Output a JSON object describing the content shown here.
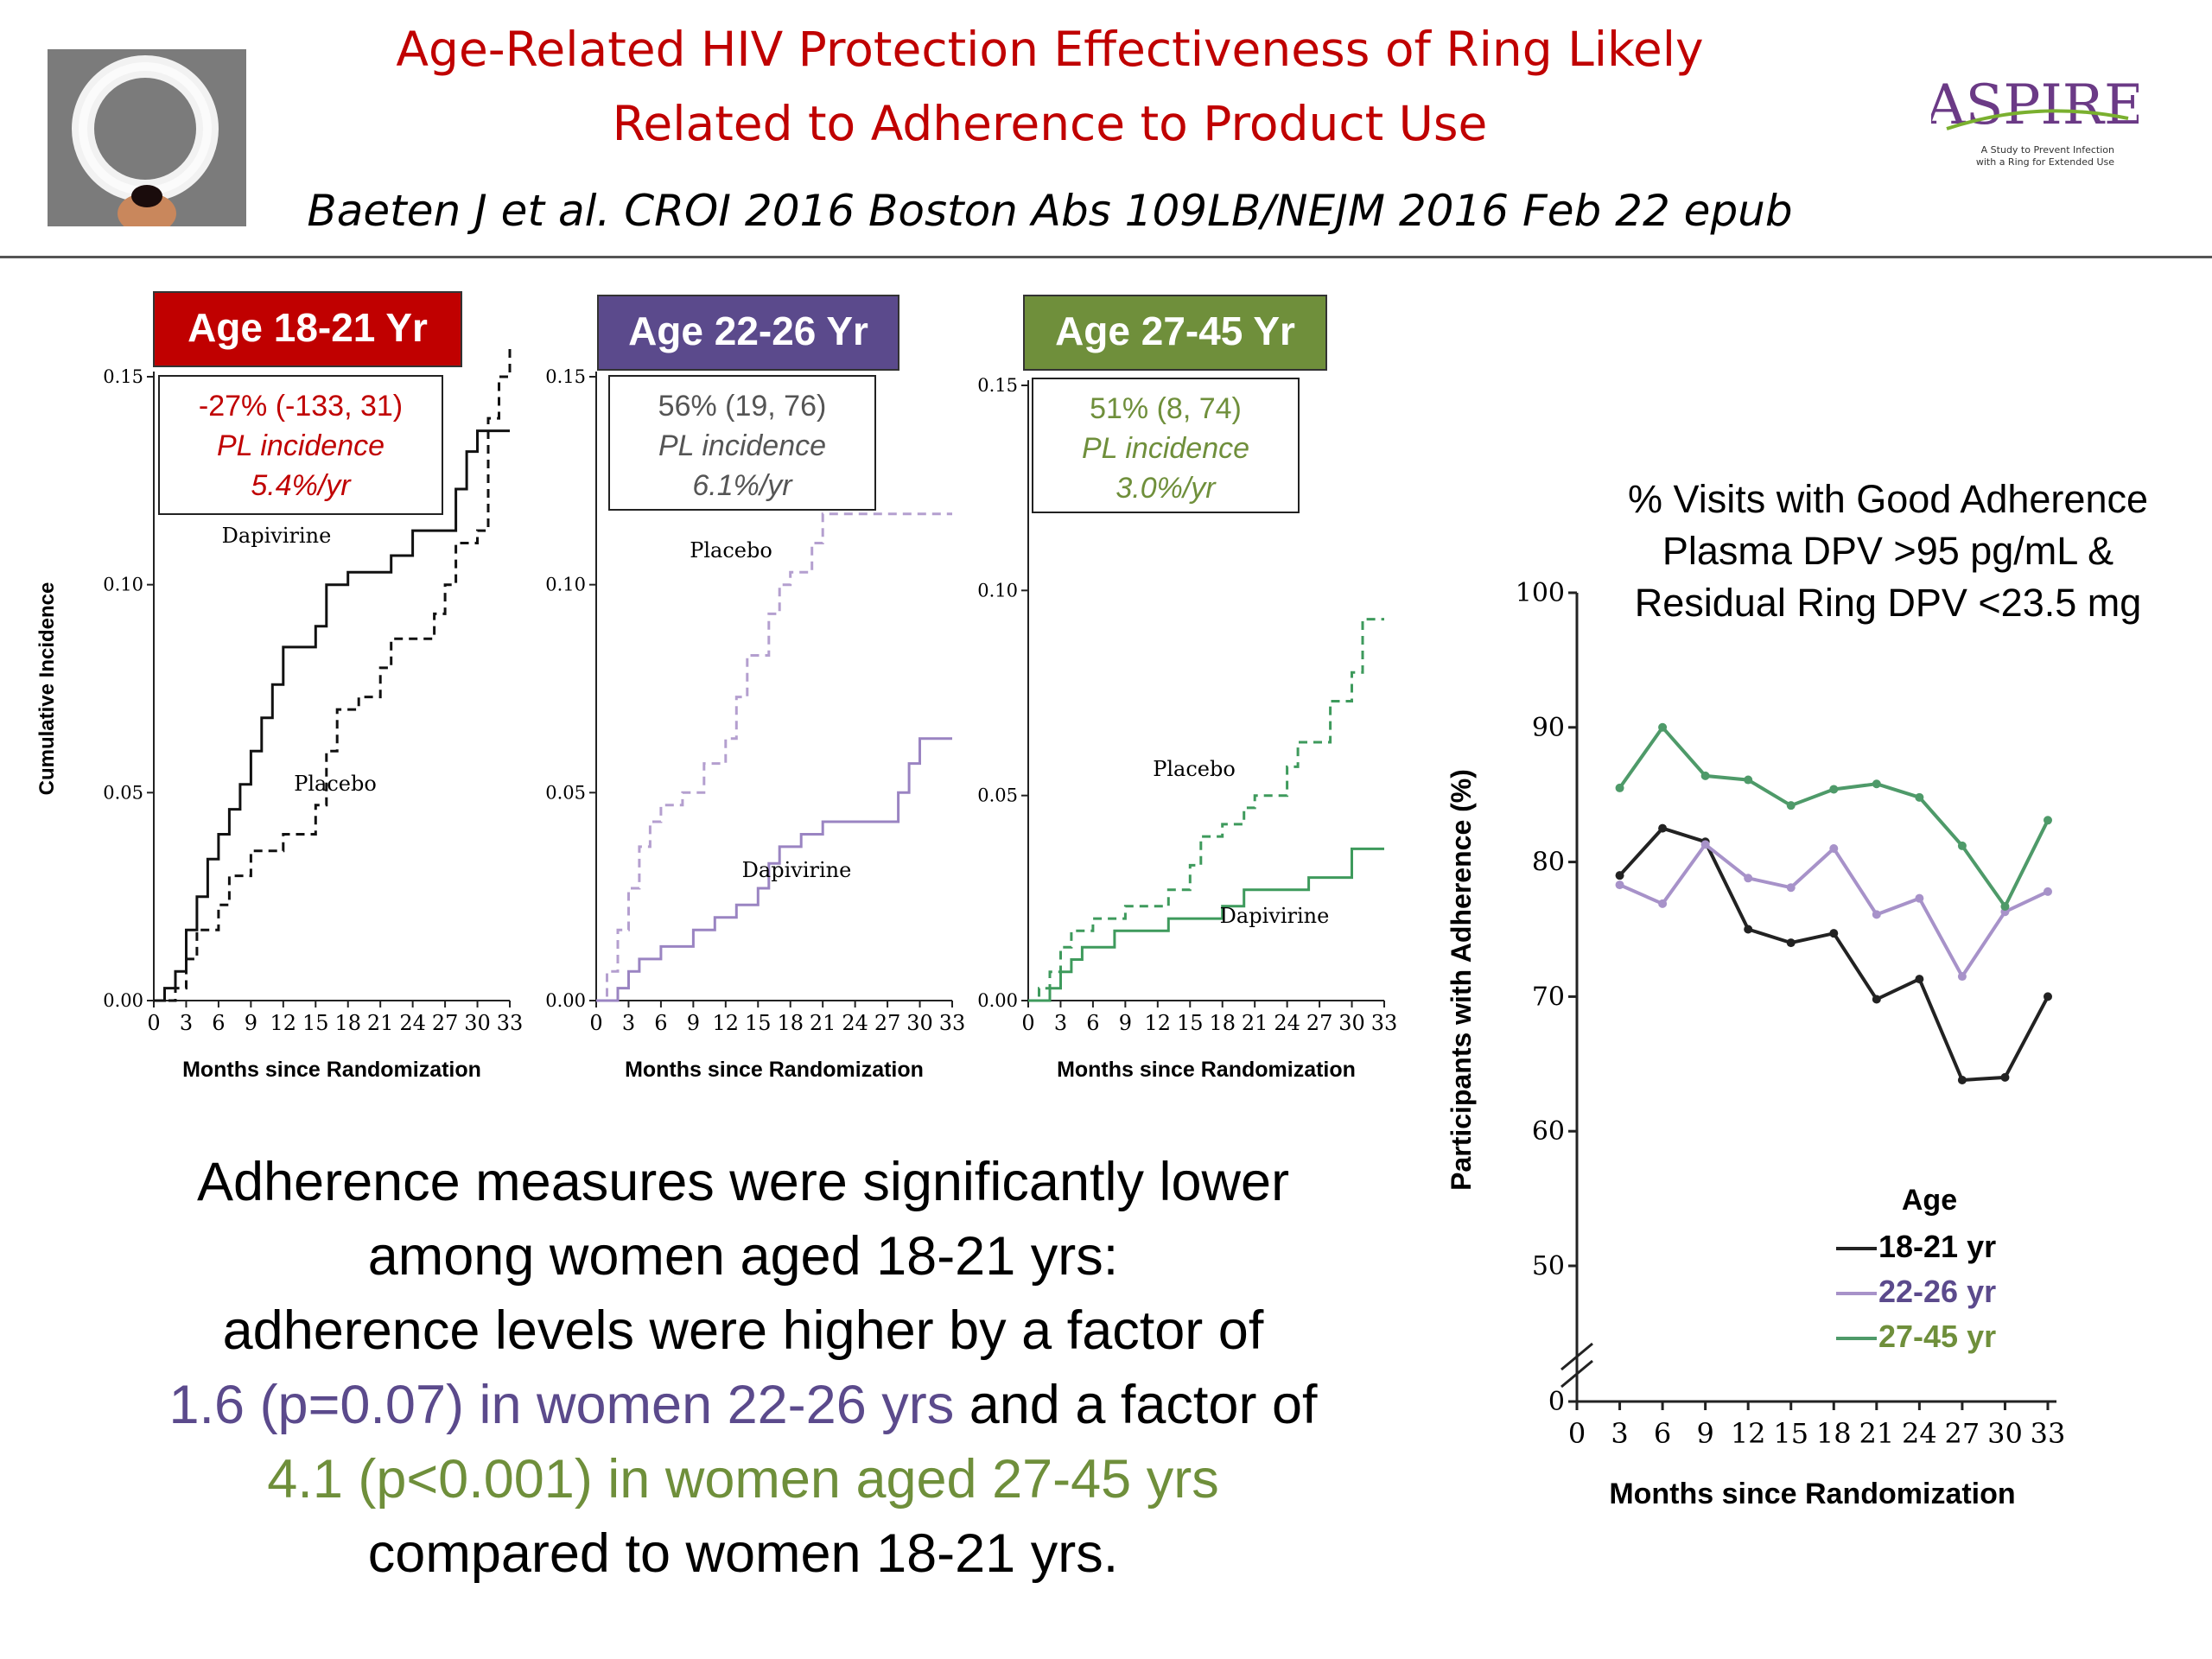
{
  "header": {
    "title_line1": "Age-Related HIV Protection Effectiveness of Ring  Likely",
    "title_line2": "Related to Adherence to Product Use",
    "citation": "Baeten J et al. CROI 2016 Boston Abs 109LB/NEJM 2016 Feb 22 epub",
    "logo_text": "ASPIRE",
    "logo_sub1": "A Study to Prevent Infection",
    "logo_sub2": "with a Ring for Extended Use"
  },
  "colors": {
    "title_red": "#c00000",
    "panel1_red": "#c00000",
    "panel2_purple": "#5b4a8c",
    "panel3_green": "#6f8f3b",
    "placebo_purple_line": "#b49fcf",
    "dapivirine_purple_line": "#9a84c2",
    "green_line": "#3e9a5c",
    "adh_black": "#222222",
    "adh_purple": "#a792c9",
    "adh_green": "#4e9a69"
  },
  "summary": {
    "line1": "Adherence measures were significantly lower",
    "line2": "among women aged 18-21 yrs:",
    "line3": "adherence levels were higher by a factor of",
    "line4a": "1.6 (p=0.07) in women 22-26 yrs",
    "line4b": " and a factor of",
    "line5": "4.1 (p<0.001) in women aged 27-45 yrs",
    "line6": "compared to women 18-21 yrs."
  },
  "adherence_title": {
    "line1": "% Visits with Good Adherence",
    "line2": "Plasma DPV >95 pg/mL &",
    "line3": "Residual Ring DPV <23.5 mg"
  },
  "chart_data": [
    {
      "type": "line",
      "subtype": "step",
      "badge": "Age 18-21 Yr",
      "effect": "-27% (-133, 31)",
      "effect_sub1": "PL incidence",
      "effect_sub2": "5.4%/yr",
      "ylabel": "Cumulative Incidence",
      "xlabel": "Months since Randomization",
      "x_ticks": [
        0,
        3,
        6,
        9,
        12,
        15,
        18,
        21,
        24,
        27,
        30,
        33
      ],
      "y_ticks": [
        "0.00",
        "0.05",
        "0.10",
        "0.15"
      ],
      "xlim": [
        0,
        33
      ],
      "ylim": [
        0,
        0.15
      ],
      "series": [
        {
          "name": "Dapivirine",
          "style": "solid",
          "points": [
            [
              0,
              0
            ],
            [
              1,
              0
            ],
            [
              1,
              0.003
            ],
            [
              2,
              0.003
            ],
            [
              2,
              0.007
            ],
            [
              3,
              0.007
            ],
            [
              3,
              0.017
            ],
            [
              4,
              0.017
            ],
            [
              4,
              0.025
            ],
            [
              5,
              0.025
            ],
            [
              5,
              0.034
            ],
            [
              6,
              0.034
            ],
            [
              6,
              0.04
            ],
            [
              7,
              0.04
            ],
            [
              7,
              0.046
            ],
            [
              8,
              0.046
            ],
            [
              8,
              0.052
            ],
            [
              9,
              0.052
            ],
            [
              9,
              0.06
            ],
            [
              10,
              0.06
            ],
            [
              10,
              0.068
            ],
            [
              11,
              0.068
            ],
            [
              11,
              0.076
            ],
            [
              12,
              0.076
            ],
            [
              12,
              0.085
            ],
            [
              15,
              0.085
            ],
            [
              15,
              0.09
            ],
            [
              16,
              0.09
            ],
            [
              16,
              0.1
            ],
            [
              18,
              0.1
            ],
            [
              18,
              0.103
            ],
            [
              22,
              0.103
            ],
            [
              22,
              0.107
            ],
            [
              24,
              0.107
            ],
            [
              24,
              0.113
            ],
            [
              28,
              0.113
            ],
            [
              28,
              0.123
            ],
            [
              29,
              0.123
            ],
            [
              29,
              0.132
            ],
            [
              30,
              0.132
            ],
            [
              30,
              0.137
            ],
            [
              33,
              0.137
            ]
          ]
        },
        {
          "name": "Placebo",
          "style": "dashed",
          "points": [
            [
              0,
              0
            ],
            [
              2,
              0
            ],
            [
              2,
              0.003
            ],
            [
              3,
              0.003
            ],
            [
              3,
              0.01
            ],
            [
              4,
              0.01
            ],
            [
              4,
              0.017
            ],
            [
              6,
              0.017
            ],
            [
              6,
              0.023
            ],
            [
              7,
              0.023
            ],
            [
              7,
              0.03
            ],
            [
              9,
              0.03
            ],
            [
              9,
              0.036
            ],
            [
              12,
              0.036
            ],
            [
              12,
              0.04
            ],
            [
              15,
              0.04
            ],
            [
              15,
              0.047
            ],
            [
              16,
              0.047
            ],
            [
              16,
              0.06
            ],
            [
              17,
              0.06
            ],
            [
              17,
              0.07
            ],
            [
              19,
              0.07
            ],
            [
              19,
              0.073
            ],
            [
              21,
              0.073
            ],
            [
              21,
              0.08
            ],
            [
              22,
              0.08
            ],
            [
              22,
              0.087
            ],
            [
              26,
              0.087
            ],
            [
              26,
              0.093
            ],
            [
              27,
              0.093
            ],
            [
              27,
              0.1
            ],
            [
              28,
              0.1
            ],
            [
              28,
              0.11
            ],
            [
              30,
              0.11
            ],
            [
              30,
              0.113
            ],
            [
              31,
              0.113
            ],
            [
              31,
              0.14
            ],
            [
              32,
              0.14
            ],
            [
              32,
              0.15
            ],
            [
              33,
              0.15
            ],
            [
              33,
              0.157
            ]
          ]
        }
      ]
    },
    {
      "type": "line",
      "subtype": "step",
      "badge": "Age 22-26 Yr",
      "effect": "56% (19, 76)",
      "effect_sub1": "PL incidence",
      "effect_sub2": "6.1%/yr",
      "xlabel": "Months since Randomization",
      "x_ticks": [
        0,
        3,
        6,
        9,
        12,
        15,
        18,
        21,
        24,
        27,
        30,
        33
      ],
      "y_ticks": [
        "0.00",
        "0.05",
        "0.10",
        "0.15"
      ],
      "xlim": [
        0,
        33
      ],
      "ylim": [
        0,
        0.15
      ],
      "series": [
        {
          "name": "Placebo",
          "style": "dashed",
          "points": [
            [
              0,
              0
            ],
            [
              1,
              0
            ],
            [
              1,
              0.007
            ],
            [
              2,
              0.007
            ],
            [
              2,
              0.017
            ],
            [
              3,
              0.017
            ],
            [
              3,
              0.027
            ],
            [
              4,
              0.027
            ],
            [
              4,
              0.037
            ],
            [
              5,
              0.037
            ],
            [
              5,
              0.043
            ],
            [
              6,
              0.043
            ],
            [
              6,
              0.047
            ],
            [
              8,
              0.047
            ],
            [
              8,
              0.05
            ],
            [
              10,
              0.05
            ],
            [
              10,
              0.057
            ],
            [
              12,
              0.057
            ],
            [
              12,
              0.063
            ],
            [
              13,
              0.063
            ],
            [
              13,
              0.073
            ],
            [
              14,
              0.073
            ],
            [
              14,
              0.083
            ],
            [
              16,
              0.083
            ],
            [
              16,
              0.093
            ],
            [
              17,
              0.093
            ],
            [
              17,
              0.1
            ],
            [
              18,
              0.1
            ],
            [
              18,
              0.103
            ],
            [
              20,
              0.103
            ],
            [
              20,
              0.11
            ],
            [
              21,
              0.11
            ],
            [
              21,
              0.117
            ],
            [
              33,
              0.117
            ]
          ]
        },
        {
          "name": "Dapivirine",
          "style": "solid",
          "points": [
            [
              0,
              0
            ],
            [
              2,
              0
            ],
            [
              2,
              0.003
            ],
            [
              3,
              0.003
            ],
            [
              3,
              0.007
            ],
            [
              4,
              0.007
            ],
            [
              4,
              0.01
            ],
            [
              6,
              0.01
            ],
            [
              6,
              0.013
            ],
            [
              9,
              0.013
            ],
            [
              9,
              0.017
            ],
            [
              11,
              0.017
            ],
            [
              11,
              0.02
            ],
            [
              13,
              0.02
            ],
            [
              13,
              0.023
            ],
            [
              15,
              0.023
            ],
            [
              15,
              0.027
            ],
            [
              16,
              0.027
            ],
            [
              16,
              0.033
            ],
            [
              17,
              0.033
            ],
            [
              17,
              0.037
            ],
            [
              19,
              0.037
            ],
            [
              19,
              0.04
            ],
            [
              21,
              0.04
            ],
            [
              21,
              0.043
            ],
            [
              28,
              0.043
            ],
            [
              28,
              0.05
            ],
            [
              29,
              0.05
            ],
            [
              29,
              0.057
            ],
            [
              30,
              0.057
            ],
            [
              30,
              0.063
            ],
            [
              33,
              0.063
            ]
          ]
        }
      ]
    },
    {
      "type": "line",
      "subtype": "step",
      "badge": "Age 27-45 Yr",
      "effect": "51% (8, 74)",
      "effect_sub1": "PL incidence",
      "effect_sub2": "3.0%/yr",
      "xlabel": "Months since Randomization",
      "x_ticks": [
        0,
        3,
        6,
        9,
        12,
        15,
        18,
        21,
        24,
        27,
        30,
        33
      ],
      "y_ticks": [
        "0.00",
        "0.05",
        "0.10",
        "0.15"
      ],
      "xlim": [
        0,
        33
      ],
      "ylim": [
        0,
        0.15
      ],
      "series": [
        {
          "name": "Placebo",
          "style": "dashed",
          "points": [
            [
              0,
              0
            ],
            [
              1,
              0
            ],
            [
              1,
              0.003
            ],
            [
              2,
              0.003
            ],
            [
              2,
              0.007
            ],
            [
              3,
              0.007
            ],
            [
              3,
              0.013
            ],
            [
              4,
              0.013
            ],
            [
              4,
              0.017
            ],
            [
              6,
              0.017
            ],
            [
              6,
              0.02
            ],
            [
              9,
              0.02
            ],
            [
              9,
              0.023
            ],
            [
              13,
              0.023
            ],
            [
              13,
              0.027
            ],
            [
              15,
              0.027
            ],
            [
              15,
              0.033
            ],
            [
              16,
              0.033
            ],
            [
              16,
              0.04
            ],
            [
              18,
              0.04
            ],
            [
              18,
              0.043
            ],
            [
              20,
              0.043
            ],
            [
              20,
              0.047
            ],
            [
              21,
              0.047
            ],
            [
              21,
              0.05
            ],
            [
              24,
              0.05
            ],
            [
              24,
              0.057
            ],
            [
              25,
              0.057
            ],
            [
              25,
              0.063
            ],
            [
              28,
              0.063
            ],
            [
              28,
              0.073
            ],
            [
              30,
              0.073
            ],
            [
              30,
              0.08
            ],
            [
              31,
              0.08
            ],
            [
              31,
              0.093
            ],
            [
              33,
              0.093
            ]
          ]
        },
        {
          "name": "Dapivirine",
          "style": "solid",
          "points": [
            [
              0,
              0
            ],
            [
              2,
              0
            ],
            [
              2,
              0.003
            ],
            [
              3,
              0.003
            ],
            [
              3,
              0.007
            ],
            [
              4,
              0.007
            ],
            [
              4,
              0.01
            ],
            [
              5,
              0.01
            ],
            [
              5,
              0.013
            ],
            [
              8,
              0.013
            ],
            [
              8,
              0.017
            ],
            [
              13,
              0.017
            ],
            [
              13,
              0.02
            ],
            [
              18,
              0.02
            ],
            [
              18,
              0.023
            ],
            [
              20,
              0.023
            ],
            [
              20,
              0.027
            ],
            [
              26,
              0.027
            ],
            [
              26,
              0.03
            ],
            [
              30,
              0.03
            ],
            [
              30,
              0.037
            ],
            [
              33,
              0.037
            ]
          ]
        }
      ]
    },
    {
      "type": "line",
      "xlabel": "Months since Randomization",
      "ylabel": "Participants with Adherence (%)",
      "x": [
        3,
        6,
        9,
        12,
        15,
        18,
        21,
        24,
        27,
        30,
        33
      ],
      "y_ticks": [
        "0",
        "50",
        "60",
        "70",
        "80",
        "90",
        "100"
      ],
      "ylim": [
        50,
        100
      ],
      "axis_break": true,
      "legend_title": "Age",
      "legend_position": "bottom-right",
      "series": [
        {
          "name": "18-21 yr",
          "values": [
            79,
            82.5,
            81.5,
            75,
            74,
            74.7,
            69.8,
            71.3,
            63.8,
            64,
            70
          ]
        },
        {
          "name": "22-26 yr",
          "values": [
            78.3,
            76.9,
            81.3,
            78.8,
            78.1,
            81,
            76.1,
            77.3,
            71.5,
            76.3,
            77.8
          ]
        },
        {
          "name": "27-45 yr",
          "values": [
            85.5,
            90,
            86.4,
            86.1,
            84.2,
            85.4,
            85.8,
            84.8,
            81.2,
            76.7,
            83.1
          ]
        }
      ]
    }
  ]
}
